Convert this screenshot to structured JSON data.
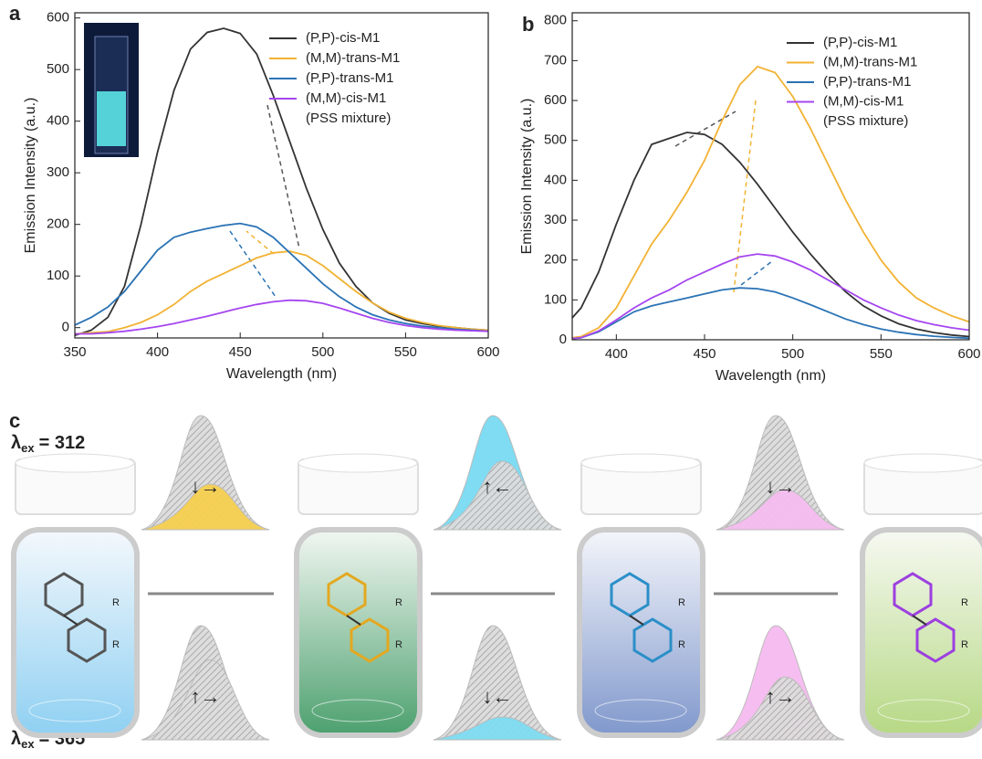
{
  "chart_data": [
    {
      "type": "line",
      "panel": "a",
      "xlabel": "Wavelength (nm)",
      "ylabel": "Emission Intensity (a.u.)",
      "x": [
        350,
        360,
        370,
        380,
        390,
        400,
        410,
        420,
        430,
        440,
        450,
        460,
        470,
        480,
        490,
        500,
        510,
        520,
        530,
        540,
        550,
        560,
        570,
        580,
        590,
        600
      ],
      "xlim": [
        350,
        600
      ],
      "xticks": [
        350,
        400,
        450,
        500,
        550,
        600
      ],
      "ylim": [
        -20,
        610
      ],
      "yticks": [
        0,
        100,
        200,
        300,
        400,
        500,
        600
      ],
      "legend_note": "(PSS mixture)",
      "series": [
        {
          "name": "(P,P)-cis-M1",
          "color": "#333333",
          "values": [
            -15,
            -5,
            20,
            80,
            200,
            340,
            460,
            540,
            572,
            580,
            570,
            530,
            450,
            360,
            270,
            190,
            125,
            80,
            48,
            28,
            15,
            8,
            3,
            0,
            -3,
            -5
          ]
        },
        {
          "name": "(M,M)-trans-M1",
          "color": "#f2b233",
          "values": [
            -12,
            -10,
            -8,
            0,
            10,
            25,
            45,
            70,
            90,
            105,
            120,
            135,
            145,
            148,
            140,
            120,
            95,
            70,
            48,
            30,
            18,
            10,
            4,
            0,
            -3,
            -5
          ]
        },
        {
          "name": "(P,P)-trans-M1",
          "color": "#2a73b5",
          "values": [
            5,
            20,
            40,
            70,
            110,
            150,
            175,
            185,
            192,
            198,
            202,
            195,
            175,
            145,
            115,
            85,
            60,
            40,
            25,
            15,
            8,
            3,
            0,
            -3,
            -5,
            -7
          ]
        },
        {
          "name": "(M,M)-cis-M1",
          "color": "#a546f0",
          "values": [
            -12,
            -12,
            -10,
            -7,
            -3,
            2,
            8,
            15,
            22,
            30,
            38,
            45,
            50,
            53,
            52,
            47,
            38,
            28,
            18,
            10,
            4,
            0,
            -3,
            -5,
            -6,
            -7
          ]
        }
      ]
    },
    {
      "type": "line",
      "panel": "b",
      "xlabel": "Wavelength (nm)",
      "ylabel": "Emission Intensity (a.u.)",
      "x": [
        375,
        380,
        390,
        400,
        410,
        420,
        430,
        440,
        450,
        460,
        470,
        480,
        490,
        500,
        510,
        520,
        530,
        540,
        550,
        560,
        570,
        580,
        590,
        600
      ],
      "xlim": [
        375,
        600
      ],
      "xticks": [
        400,
        450,
        500,
        550,
        600
      ],
      "ylim": [
        0,
        820
      ],
      "yticks": [
        0,
        100,
        200,
        300,
        400,
        500,
        600,
        700,
        800
      ],
      "legend_note": "(PSS mixture)",
      "series": [
        {
          "name": "(P,P)-cis-M1",
          "color": "#333333",
          "values": [
            55,
            80,
            170,
            290,
            400,
            490,
            505,
            520,
            515,
            490,
            445,
            390,
            330,
            270,
            215,
            165,
            120,
            85,
            60,
            40,
            27,
            18,
            12,
            8
          ]
        },
        {
          "name": "(M,M)-trans-M1",
          "color": "#f2b233",
          "values": [
            5,
            8,
            30,
            80,
            160,
            240,
            300,
            370,
            450,
            550,
            640,
            685,
            670,
            610,
            530,
            440,
            350,
            270,
            200,
            145,
            105,
            80,
            60,
            45
          ]
        },
        {
          "name": "(P,P)-trans-M1",
          "color": "#2a73b5",
          "values": [
            3,
            5,
            20,
            45,
            70,
            85,
            95,
            105,
            115,
            125,
            130,
            128,
            120,
            105,
            88,
            70,
            52,
            38,
            27,
            19,
            13,
            9,
            6,
            4
          ]
        },
        {
          "name": "(M,M)-cis-M1",
          "color": "#a546f0",
          "values": [
            3,
            5,
            22,
            50,
            80,
            105,
            125,
            150,
            170,
            190,
            208,
            215,
            210,
            195,
            175,
            150,
            125,
            100,
            80,
            62,
            48,
            38,
            30,
            24
          ]
        }
      ]
    }
  ],
  "panel_c": {
    "label": "c",
    "lambda": "λ",
    "sub": "ex",
    "top_value": "= 312",
    "bottom_value": "= 365",
    "mini_labels": [
      "↓→",
      "↑←",
      "↓→",
      "↑→",
      "↓←",
      "↑→"
    ],
    "substituent": "R"
  }
}
